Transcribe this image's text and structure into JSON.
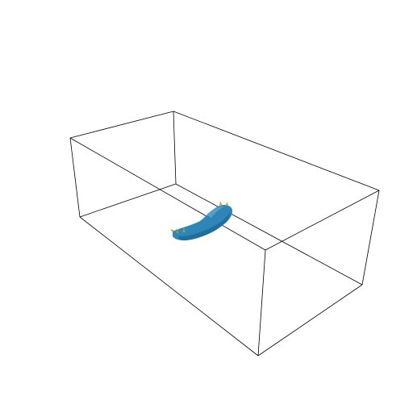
{
  "scene": {
    "background": "#ffffff",
    "box": {
      "edge_color": "#000000"
    },
    "object": {
      "shape": "elongated-blob",
      "color": "#2e86b8",
      "shade_color": "#1f6f9e",
      "highlight_color": "#5aa7cf",
      "tip_color": "#a89a4a"
    }
  }
}
